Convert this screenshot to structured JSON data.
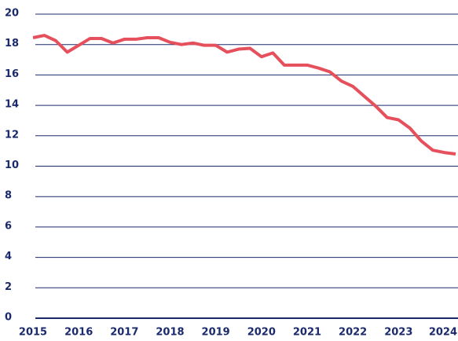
{
  "chart_data": {
    "type": "line",
    "x": [
      2015,
      2015.25,
      2015.5,
      2015.75,
      2016,
      2016.25,
      2016.5,
      2016.75,
      2017,
      2017.25,
      2017.5,
      2017.75,
      2018,
      2018.25,
      2018.5,
      2018.75,
      2019,
      2019.25,
      2019.5,
      2019.75,
      2020,
      2020.25,
      2020.5,
      2020.75,
      2021,
      2021.25,
      2021.5,
      2021.75,
      2022,
      2022.25,
      2022.5,
      2022.75,
      2023,
      2023.25,
      2023.5,
      2023.75,
      2024,
      2024.25
    ],
    "series": [
      {
        "color": "#e5505c",
        "values": [
          18.45,
          18.6,
          18.25,
          17.5,
          17.95,
          18.4,
          18.4,
          18.1,
          18.35,
          18.35,
          18.45,
          18.45,
          18.15,
          18.0,
          18.1,
          17.95,
          17.95,
          17.5,
          17.7,
          17.75,
          17.2,
          17.45,
          16.65,
          16.65,
          16.65,
          16.45,
          16.2,
          15.6,
          15.25,
          14.6,
          13.95,
          13.2,
          13.05,
          12.5,
          11.65,
          11.05,
          10.9,
          10.8
        ]
      }
    ],
    "xlim": [
      2015,
      2024.25
    ],
    "xticks": [
      2015,
      2016,
      2017,
      2018,
      2019,
      2020,
      2021,
      2022,
      2023,
      2024
    ],
    "ylim": [
      0,
      20
    ],
    "yticks": [
      0,
      2,
      4,
      6,
      8,
      10,
      12,
      14,
      16,
      18,
      20
    ],
    "grid": true
  }
}
